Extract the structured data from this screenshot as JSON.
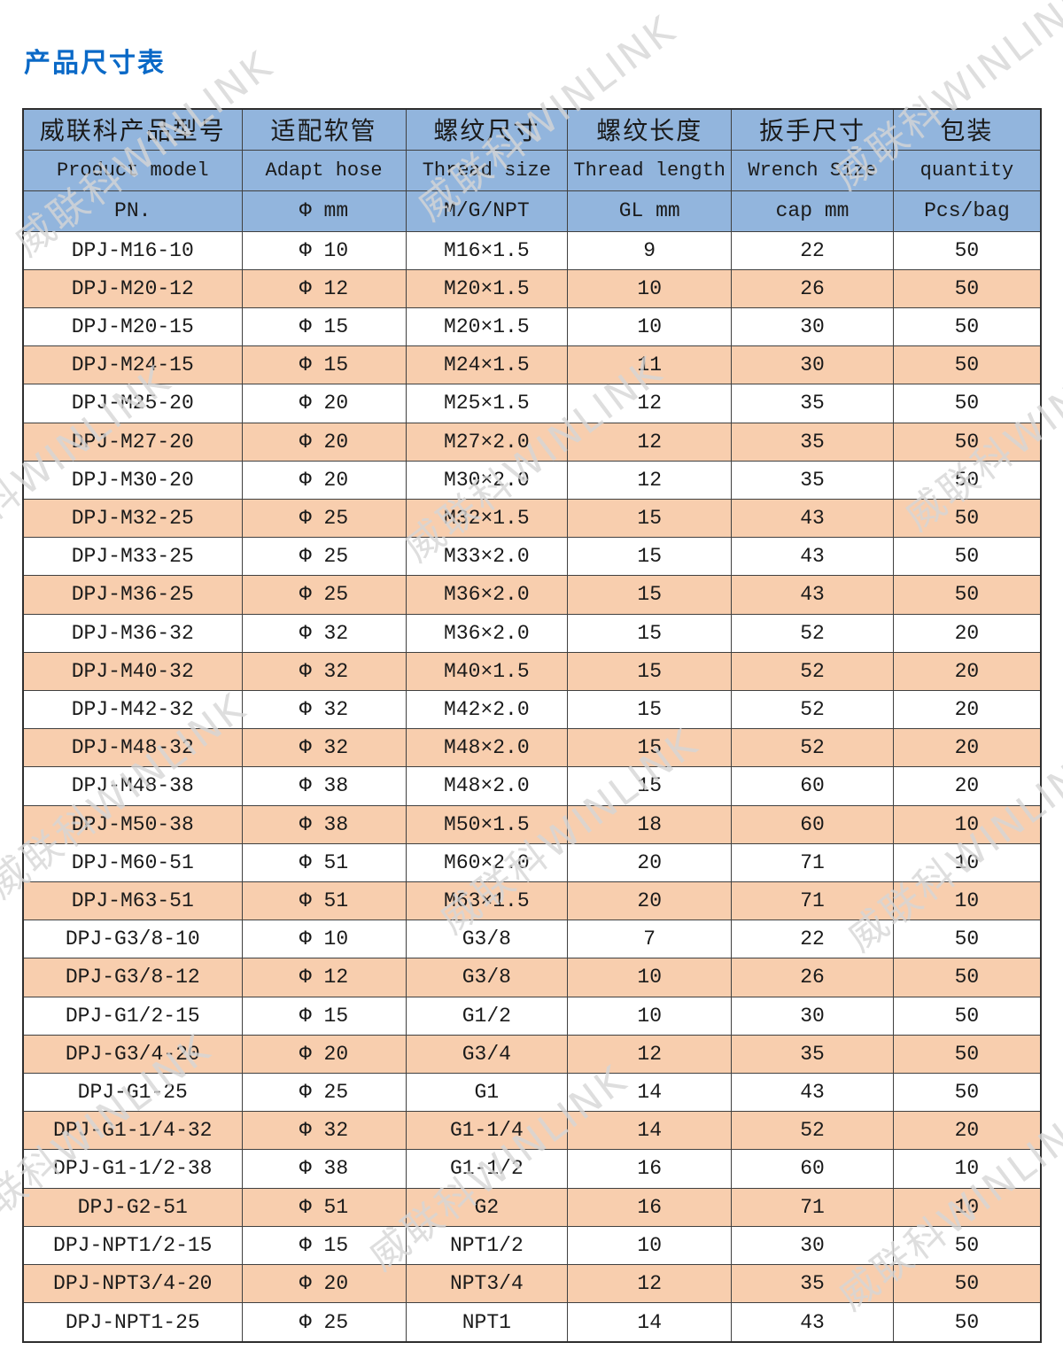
{
  "title": "产品尺寸表",
  "watermark": {
    "text": "威联科WINLINK"
  },
  "colors": {
    "header_bg": "#92b5dd",
    "stripe_bg": "#f8ceae",
    "row_bg": "#ffffff",
    "title_color": "#0a69c7",
    "border_color": "#404040",
    "text_color": "#1a1a1a",
    "watermark_color": "#d6d6d6"
  },
  "table": {
    "header": {
      "columns": [
        {
          "cn": "威联科产品型号",
          "en": "Product model",
          "unit": "PN."
        },
        {
          "cn": "适配软管",
          "en": "Adapt hose",
          "unit": "Φ mm"
        },
        {
          "cn": "螺纹尺寸",
          "en": "Thread size",
          "unit": "M/G/NPT"
        },
        {
          "cn": "螺纹长度",
          "en": "Thread length",
          "unit": "GL mm"
        },
        {
          "cn": "扳手尺寸",
          "en": "Wrench Size",
          "unit": "cap mm"
        },
        {
          "cn": "包装",
          "en": "quantity",
          "unit": "Pcs/bag"
        }
      ]
    },
    "rows": [
      [
        "DPJ-M16-10",
        "Φ 10",
        "M16×1.5",
        "9",
        "22",
        "50"
      ],
      [
        "DPJ-M20-12",
        "Φ 12",
        "M20×1.5",
        "10",
        "26",
        "50"
      ],
      [
        "DPJ-M20-15",
        "Φ 15",
        "M20×1.5",
        "10",
        "30",
        "50"
      ],
      [
        "DPJ-M24-15",
        "Φ 15",
        "M24×1.5",
        "11",
        "30",
        "50"
      ],
      [
        "DPJ-M25-20",
        "Φ 20",
        "M25×1.5",
        "12",
        "35",
        "50"
      ],
      [
        "DPJ-M27-20",
        "Φ 20",
        "M27×2.0",
        "12",
        "35",
        "50"
      ],
      [
        "DPJ-M30-20",
        "Φ 20",
        "M30×2.0",
        "12",
        "35",
        "50"
      ],
      [
        "DPJ-M32-25",
        "Φ 25",
        "M32×1.5",
        "15",
        "43",
        "50"
      ],
      [
        "DPJ-M33-25",
        "Φ 25",
        "M33×2.0",
        "15",
        "43",
        "50"
      ],
      [
        "DPJ-M36-25",
        "Φ 25",
        "M36×2.0",
        "15",
        "43",
        "50"
      ],
      [
        "DPJ-M36-32",
        "Φ 32",
        "M36×2.0",
        "15",
        "52",
        "20"
      ],
      [
        "DPJ-M40-32",
        "Φ 32",
        "M40×1.5",
        "15",
        "52",
        "20"
      ],
      [
        "DPJ-M42-32",
        "Φ 32",
        "M42×2.0",
        "15",
        "52",
        "20"
      ],
      [
        "DPJ-M48-32",
        "Φ 32",
        "M48×2.0",
        "15",
        "52",
        "20"
      ],
      [
        "DPJ-M48-38",
        "Φ 38",
        "M48×2.0",
        "15",
        "60",
        "20"
      ],
      [
        "DPJ-M50-38",
        "Φ 38",
        "M50×1.5",
        "18",
        "60",
        "10"
      ],
      [
        "DPJ-M60-51",
        "Φ 51",
        "M60×2.0",
        "20",
        "71",
        "10"
      ],
      [
        "DPJ-M63-51",
        "Φ 51",
        "M63×1.5",
        "20",
        "71",
        "10"
      ],
      [
        "DPJ-G3/8-10",
        "Φ 10",
        "G3/8",
        "7",
        "22",
        "50"
      ],
      [
        "DPJ-G3/8-12",
        "Φ 12",
        "G3/8",
        "10",
        "26",
        "50"
      ],
      [
        "DPJ-G1/2-15",
        "Φ 15",
        "G1/2",
        "10",
        "30",
        "50"
      ],
      [
        "DPJ-G3/4-20",
        "Φ 20",
        "G3/4",
        "12",
        "35",
        "50"
      ],
      [
        "DPJ-G1-25",
        "Φ 25",
        "G1",
        "14",
        "43",
        "50"
      ],
      [
        "DPJ-G1-1/4-32",
        "Φ 32",
        "G1-1/4",
        "14",
        "52",
        "20"
      ],
      [
        "DPJ-G1-1/2-38",
        "Φ 38",
        "G1-1/2",
        "16",
        "60",
        "10"
      ],
      [
        "DPJ-G2-51",
        "Φ 51",
        "G2",
        "16",
        "71",
        "10"
      ],
      [
        "DPJ-NPT1/2-15",
        "Φ 15",
        "NPT1/2",
        "10",
        "30",
        "50"
      ],
      [
        "DPJ-NPT3/4-20",
        "Φ 20",
        "NPT3/4",
        "12",
        "35",
        "50"
      ],
      [
        "DPJ-NPT1-25",
        "Φ 25",
        "NPT1",
        "14",
        "43",
        "50"
      ]
    ]
  }
}
